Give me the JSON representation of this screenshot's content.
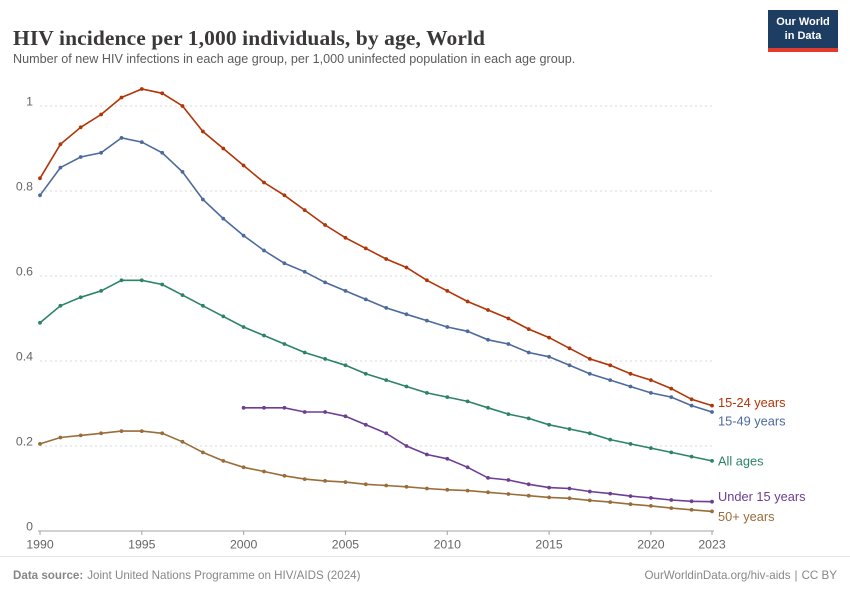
{
  "header": {
    "logo": {
      "line1": "Our World",
      "line2": "in Data"
    }
  },
  "footer": {
    "datasource_label": "Data source:",
    "datasource_value": "Joint United Nations Programme on HIV/AIDS (2024)",
    "link": "OurWorldinData.org/hiv-aids",
    "separator": "|",
    "license": "CC BY"
  },
  "colors": {
    "axis": "#a3a3a3",
    "gridline": "#dadada",
    "tick_label": "#666666",
    "logo_bg": "#1d3d63",
    "logo_accent": "#e23b2e"
  },
  "chart_data": {
    "type": "line",
    "title": "HIV incidence per 1,000 individuals, by age, World",
    "subtitle": "Number of new HIV infections in each age group, per 1,000 uninfected population in each age group.",
    "xlabel": "",
    "ylabel": "",
    "xlim": [
      1990,
      2023
    ],
    "ylim": [
      0,
      1.05
    ],
    "xticks": [
      1990,
      1995,
      2000,
      2005,
      2010,
      2015,
      2020,
      2023
    ],
    "yticks": [
      0,
      0.2,
      0.4,
      0.6,
      0.8,
      1
    ],
    "grid": "horizontal-dashed",
    "legend_position": "labels-at-line-ends",
    "years": [
      1990,
      1991,
      1992,
      1993,
      1994,
      1995,
      1996,
      1997,
      1998,
      1999,
      2000,
      2001,
      2002,
      2003,
      2004,
      2005,
      2006,
      2007,
      2008,
      2009,
      2010,
      2011,
      2012,
      2013,
      2014,
      2015,
      2016,
      2017,
      2018,
      2019,
      2020,
      2021,
      2022,
      2023
    ],
    "series": [
      {
        "name": "15-24 years",
        "color": "#B13507",
        "start_year": 1990,
        "values": [
          0.83,
          0.91,
          0.95,
          0.98,
          1.02,
          1.04,
          1.03,
          1.0,
          0.94,
          0.9,
          0.86,
          0.82,
          0.79,
          0.755,
          0.72,
          0.69,
          0.665,
          0.64,
          0.62,
          0.59,
          0.565,
          0.54,
          0.52,
          0.5,
          0.475,
          0.455,
          0.43,
          0.405,
          0.39,
          0.37,
          0.355,
          0.335,
          0.31,
          0.295
        ]
      },
      {
        "name": "15-49 years",
        "color": "#4C6A9C",
        "start_year": 1990,
        "values": [
          0.79,
          0.855,
          0.88,
          0.89,
          0.925,
          0.915,
          0.89,
          0.845,
          0.78,
          0.735,
          0.695,
          0.66,
          0.63,
          0.61,
          0.585,
          0.565,
          0.545,
          0.525,
          0.51,
          0.495,
          0.48,
          0.47,
          0.45,
          0.44,
          0.42,
          0.41,
          0.39,
          0.37,
          0.355,
          0.34,
          0.325,
          0.315,
          0.295,
          0.28
        ]
      },
      {
        "name": "All ages",
        "color": "#2C8465",
        "start_year": 1990,
        "values": [
          0.49,
          0.53,
          0.55,
          0.565,
          0.59,
          0.59,
          0.58,
          0.555,
          0.53,
          0.505,
          0.48,
          0.46,
          0.44,
          0.42,
          0.405,
          0.39,
          0.37,
          0.355,
          0.34,
          0.325,
          0.315,
          0.305,
          0.29,
          0.275,
          0.265,
          0.25,
          0.24,
          0.23,
          0.215,
          0.205,
          0.195,
          0.185,
          0.175,
          0.165
        ]
      },
      {
        "name": "Under 15 years",
        "color": "#6D3E91",
        "start_year": 2000,
        "values": [
          0.29,
          0.29,
          0.29,
          0.28,
          0.28,
          0.27,
          0.25,
          0.23,
          0.2,
          0.18,
          0.17,
          0.15,
          0.125,
          0.12,
          0.11,
          0.102,
          0.1,
          0.093,
          0.088,
          0.082,
          0.078,
          0.073,
          0.07,
          0.069
        ]
      },
      {
        "name": "50+ years",
        "color": "#996D39",
        "start_year": 1990,
        "values": [
          0.205,
          0.22,
          0.225,
          0.23,
          0.235,
          0.235,
          0.23,
          0.21,
          0.185,
          0.165,
          0.15,
          0.14,
          0.13,
          0.122,
          0.118,
          0.115,
          0.11,
          0.107,
          0.104,
          0.1,
          0.097,
          0.095,
          0.091,
          0.087,
          0.083,
          0.079,
          0.077,
          0.072,
          0.068,
          0.063,
          0.059,
          0.054,
          0.05,
          0.046
        ]
      }
    ]
  }
}
